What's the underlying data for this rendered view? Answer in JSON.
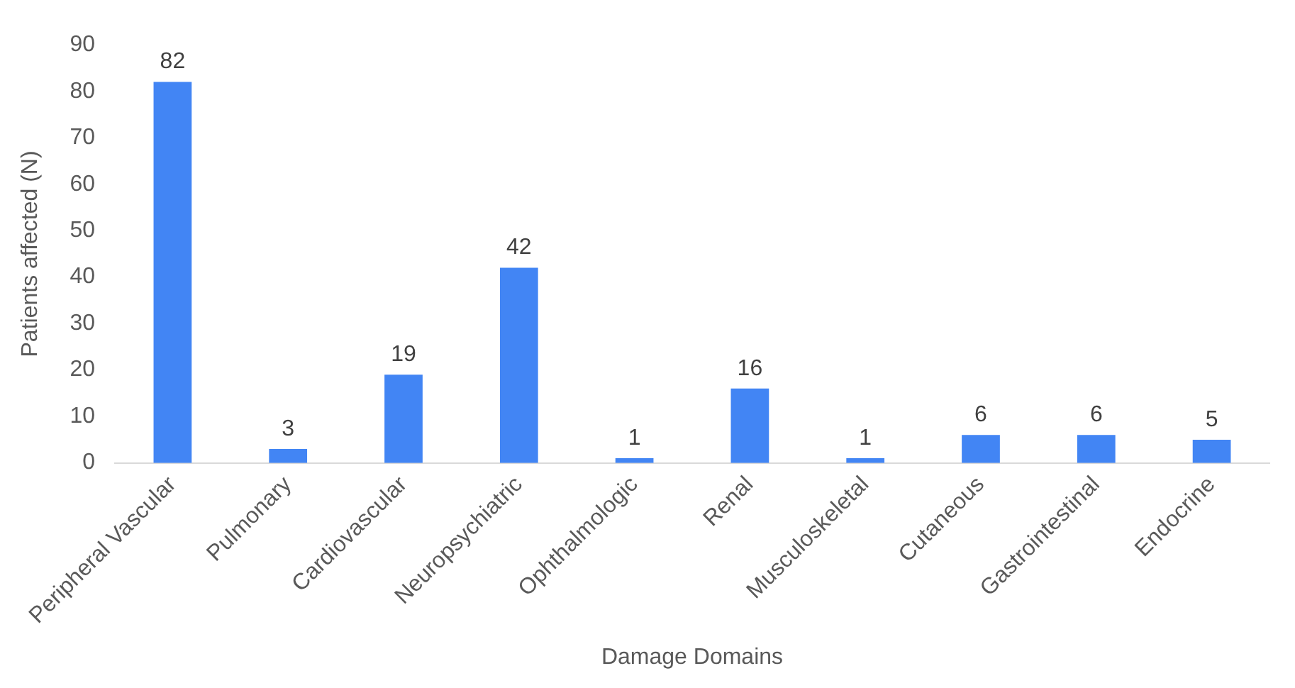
{
  "chart_data": {
    "type": "bar",
    "xlabel": "Damage Domains",
    "ylabel": "Patients affected (N)",
    "categories": [
      "Peripheral Vascular",
      "Pulmonary",
      "Cardiovascular",
      "Neuropsychiatric",
      "Ophthalmologic",
      "Renal",
      "Musculoskeletal",
      "Cutaneous",
      "Gastrointestinal",
      "Endocrine"
    ],
    "values": [
      82,
      3,
      19,
      42,
      1,
      16,
      1,
      6,
      6,
      5
    ],
    "color": "#4285f4",
    "ylim": [
      0,
      90
    ],
    "yticks": [
      0,
      10,
      20,
      30,
      40,
      50,
      60,
      70,
      80,
      90
    ],
    "grid": false,
    "legend": false,
    "data_labels": true
  }
}
